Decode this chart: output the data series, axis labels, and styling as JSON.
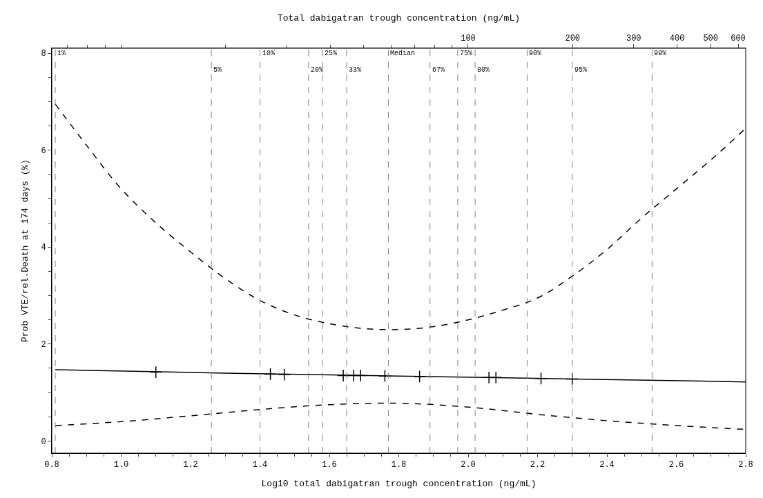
{
  "chart_data": {
    "type": "line",
    "xlabel": "Log10 total dabigatran trough concentration (ng/mL)",
    "ylabel": "Prob VTE/rel.Death at 174 days (%)",
    "x2label": "Total dabigatran trough concentration (ng/mL)",
    "xlim": [
      0.8,
      2.8
    ],
    "xticks": [
      {
        "value": 0.8,
        "label": "0.8"
      },
      {
        "value": 1.0,
        "label": "1.0"
      },
      {
        "value": 1.2,
        "label": "1.2"
      },
      {
        "value": 1.4,
        "label": "1.4"
      },
      {
        "value": 1.6,
        "label": "1.6"
      },
      {
        "value": 1.8,
        "label": "1.8"
      },
      {
        "value": 2.0,
        "label": "2.0"
      },
      {
        "value": 2.2,
        "label": "2.2"
      },
      {
        "value": 2.4,
        "label": "2.4"
      },
      {
        "value": 2.6,
        "label": "2.6"
      },
      {
        "value": 2.8,
        "label": "2.8"
      }
    ],
    "x2lim": [
      6.31,
      631
    ],
    "x2ticks": [
      100,
      200,
      300,
      400,
      500,
      600
    ],
    "log": "x2",
    "ylim": [
      -0.25,
      8.1
    ],
    "yticks": [
      0,
      2,
      4,
      6,
      8
    ],
    "series": [
      {
        "line_style": "dashed",
        "color": "#000000",
        "x": [
          0.81,
          0.9,
          1.0,
          1.1,
          1.2,
          1.3,
          1.4,
          1.5,
          1.6,
          1.7,
          1.8,
          1.9,
          2.0,
          2.1,
          2.2,
          2.3,
          2.4,
          2.5,
          2.6,
          2.7,
          2.8
        ],
        "values": [
          6.95,
          6.1,
          5.2,
          4.5,
          3.9,
          3.35,
          2.9,
          2.6,
          2.42,
          2.32,
          2.3,
          2.36,
          2.5,
          2.7,
          2.95,
          3.4,
          3.95,
          4.6,
          5.2,
          5.8,
          6.45
        ]
      },
      {
        "line_style": "solid",
        "color": "#000000",
        "x": [
          0.81,
          1.3,
          1.8,
          2.3,
          2.8
        ],
        "values": [
          1.47,
          1.4,
          1.34,
          1.28,
          1.22
        ]
      },
      {
        "line_style": "dashed",
        "color": "#000000",
        "x": [
          0.81,
          1.0,
          1.2,
          1.4,
          1.6,
          1.8,
          2.0,
          2.2,
          2.4,
          2.6,
          2.8
        ],
        "values": [
          0.32,
          0.4,
          0.52,
          0.65,
          0.75,
          0.78,
          0.7,
          0.55,
          0.42,
          0.32,
          0.24
        ]
      },
      {
        "type": "scatter",
        "marker": "cross",
        "color": "#000000",
        "x": [
          1.1,
          1.43,
          1.47,
          1.64,
          1.67,
          1.69,
          1.76,
          1.86,
          2.06,
          2.08,
          2.21,
          2.3
        ],
        "values": [
          1.42,
          1.38,
          1.37,
          1.35,
          1.35,
          1.35,
          1.34,
          1.33,
          1.31,
          1.31,
          1.29,
          1.28
        ]
      }
    ],
    "ref_lines": [
      {
        "axis": "x",
        "value": 0.81,
        "color": "#808080",
        "line_style": "dashed"
      },
      {
        "axis": "x",
        "value": 1.26,
        "color": "#808080",
        "line_style": "dashed"
      },
      {
        "axis": "x",
        "value": 1.4,
        "color": "#808080",
        "line_style": "dashed"
      },
      {
        "axis": "x",
        "value": 1.54,
        "color": "#808080",
        "line_style": "dashed"
      },
      {
        "axis": "x",
        "value": 1.58,
        "color": "#808080",
        "line_style": "dashed"
      },
      {
        "axis": "x",
        "value": 1.65,
        "color": "#808080",
        "line_style": "dashed"
      },
      {
        "axis": "x",
        "value": 1.77,
        "color": "#808080",
        "line_style": "dashed"
      },
      {
        "axis": "x",
        "value": 1.89,
        "color": "#808080",
        "line_style": "dashed"
      },
      {
        "axis": "x",
        "value": 1.97,
        "color": "#808080",
        "line_style": "dashed"
      },
      {
        "axis": "x",
        "value": 2.02,
        "color": "#808080",
        "line_style": "dashed"
      },
      {
        "axis": "x",
        "value": 2.17,
        "color": "#808080",
        "line_style": "dashed"
      },
      {
        "axis": "x",
        "value": 2.3,
        "color": "#808080",
        "line_style": "dashed"
      },
      {
        "axis": "x",
        "value": 2.53,
        "color": "#808080",
        "line_style": "dashed"
      }
    ],
    "annotations": [
      {
        "text": "1%",
        "x": 0.81,
        "y": 8.0
      },
      {
        "text": "5%",
        "x": 1.26,
        "y": 7.65
      },
      {
        "text": "10%",
        "x": 1.4,
        "y": 8.0
      },
      {
        "text": "20%",
        "x": 1.54,
        "y": 7.65
      },
      {
        "text": "25%",
        "x": 1.58,
        "y": 8.0
      },
      {
        "text": "33%",
        "x": 1.65,
        "y": 7.65
      },
      {
        "text": "Median",
        "x": 1.77,
        "y": 8.0
      },
      {
        "text": "67%",
        "x": 1.89,
        "y": 7.65
      },
      {
        "text": "75%",
        "x": 1.97,
        "y": 8.0
      },
      {
        "text": "80%",
        "x": 2.02,
        "y": 7.65
      },
      {
        "text": "90%",
        "x": 2.17,
        "y": 8.0
      },
      {
        "text": "95%",
        "x": 2.3,
        "y": 7.65
      },
      {
        "text": "99%",
        "x": 2.53,
        "y": 8.0
      }
    ]
  }
}
